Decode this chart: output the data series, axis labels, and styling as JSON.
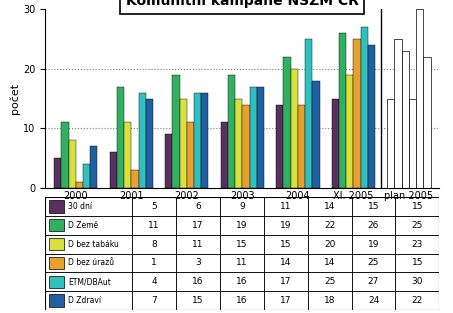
{
  "title": "Komunitní kampaňe NSZM ČR",
  "ylabel": "počet",
  "categories": [
    "2000",
    "2001",
    "2002",
    "2003",
    "2004",
    "XI. 2005",
    "plan 2005"
  ],
  "series": [
    {
      "label": "30 dní",
      "values": [
        5,
        6,
        9,
        11,
        14,
        15,
        15
      ],
      "color": "#5a3060"
    },
    {
      "label": "D Země",
      "values": [
        11,
        17,
        19,
        19,
        22,
        26,
        25
      ],
      "color": "#30b060"
    },
    {
      "label": "D bez tabáku",
      "values": [
        8,
        11,
        15,
        15,
        20,
        19,
        23
      ],
      "color": "#d8e040"
    },
    {
      "label": "D bez úrazů",
      "values": [
        1,
        3,
        11,
        14,
        14,
        25,
        15
      ],
      "color": "#e8a030"
    },
    {
      "label": "ETM/DBAut",
      "values": [
        4,
        16,
        16,
        17,
        25,
        27,
        30
      ],
      "color": "#30c0c0"
    },
    {
      "label": "D Zdraví",
      "values": [
        7,
        15,
        16,
        17,
        18,
        24,
        22
      ],
      "color": "#2060a0"
    }
  ],
  "ylim": [
    0,
    30
  ],
  "yticks": [
    0,
    10,
    20,
    30
  ],
  "bar_width": 0.13,
  "figsize": [
    4.53,
    3.13
  ],
  "dpi": 100
}
